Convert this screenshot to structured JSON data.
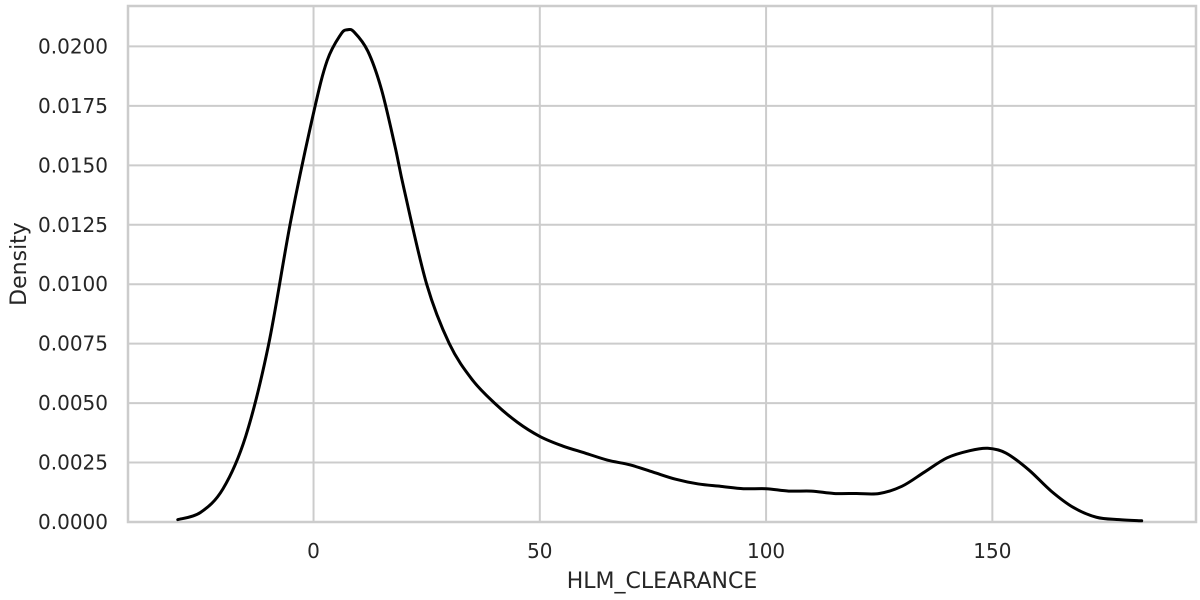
{
  "chart_data": {
    "type": "line",
    "title": "",
    "xlabel": "HLM_CLEARANCE",
    "ylabel": "Density",
    "xlim": [
      -41,
      195
    ],
    "ylim": [
      0,
      0.0217
    ],
    "grid": true,
    "x_ticks": [
      0,
      50,
      100,
      150
    ],
    "x_tick_labels": [
      "0",
      "50",
      "100",
      "150"
    ],
    "y_ticks": [
      0,
      0.0025,
      0.005,
      0.0075,
      0.01,
      0.0125,
      0.015,
      0.0175,
      0.02
    ],
    "y_tick_labels": [
      "0.0000",
      "0.0025",
      "0.0050",
      "0.0075",
      "0.0100",
      "0.0125",
      "0.0150",
      "0.0175",
      "0.0200"
    ],
    "series": [
      {
        "color": "#000000",
        "x": [
          -30,
          -25,
          -20,
          -15,
          -10,
          -5,
          0,
          3,
          6,
          7.5,
          9,
          12,
          15,
          18,
          20,
          25,
          30,
          35,
          40,
          45,
          50,
          55,
          60,
          65,
          70,
          75,
          80,
          85,
          90,
          95,
          100,
          105,
          110,
          115,
          120,
          125,
          130,
          135,
          140,
          145,
          149,
          153,
          158,
          163,
          168,
          173,
          178,
          183
        ],
        "y": [
          0.0001,
          0.0004,
          0.0014,
          0.0036,
          0.0074,
          0.0127,
          0.0172,
          0.0194,
          0.0205,
          0.0207,
          0.0206,
          0.0198,
          0.0182,
          0.0158,
          0.014,
          0.01,
          0.0075,
          0.006,
          0.005,
          0.0042,
          0.0036,
          0.0032,
          0.0029,
          0.0026,
          0.0024,
          0.0021,
          0.0018,
          0.0016,
          0.0015,
          0.0014,
          0.0014,
          0.0013,
          0.0013,
          0.0012,
          0.0012,
          0.0012,
          0.0015,
          0.0021,
          0.0027,
          0.003,
          0.0031,
          0.0029,
          0.0022,
          0.0013,
          0.0006,
          0.0002,
          0.0001,
          5e-05
        ]
      }
    ]
  }
}
